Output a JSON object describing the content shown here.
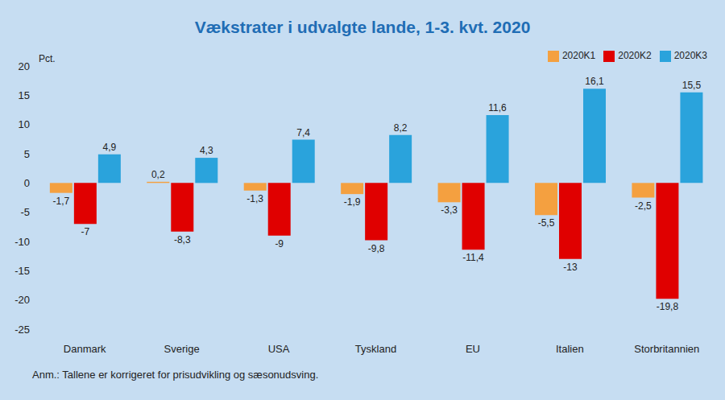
{
  "chart_data": {
    "type": "bar",
    "title": "Vækstrater i udvalgte lande, 1-3. kvt. 2020",
    "y_label": "Pct.",
    "note": "Anm.: Tallene er korrigeret for prisudvikling og sæsonudsving.",
    "categories": [
      "Danmark",
      "Sverige",
      "USA",
      "Tyskland",
      "EU",
      "Italien",
      "Storbritannien"
    ],
    "series": [
      {
        "name": "2020K1",
        "color": "#f4a040",
        "values": [
          -1.7,
          0.2,
          -1.3,
          -1.9,
          -3.3,
          -5.5,
          -2.5
        ],
        "value_labels": [
          "-1,7",
          "0,2",
          "-1,3",
          "-1,9",
          "-3,3",
          "-5,5",
          "-2,5"
        ]
      },
      {
        "name": "2020K2",
        "color": "#e00000",
        "values": [
          -7,
          -8.3,
          -9,
          -9.8,
          -11.4,
          -13,
          -19.8
        ],
        "value_labels": [
          "-7",
          "-8,3",
          "-9",
          "-9,8",
          "-11,4",
          "-13",
          "-19,8"
        ]
      },
      {
        "name": "2020K3",
        "color": "#2aa3dc",
        "values": [
          4.9,
          4.3,
          7.4,
          8.2,
          11.6,
          16.1,
          15.5
        ],
        "value_labels": [
          "4,9",
          "4,3",
          "7,4",
          "8,2",
          "11,6",
          "16,1",
          "15,5"
        ]
      }
    ],
    "ylim": [
      -25,
      20
    ],
    "yticks": [
      -25,
      -20,
      -15,
      -10,
      -5,
      0,
      5,
      10,
      15,
      20
    ],
    "grid": false,
    "legend": "top-right",
    "data_labels": true
  }
}
